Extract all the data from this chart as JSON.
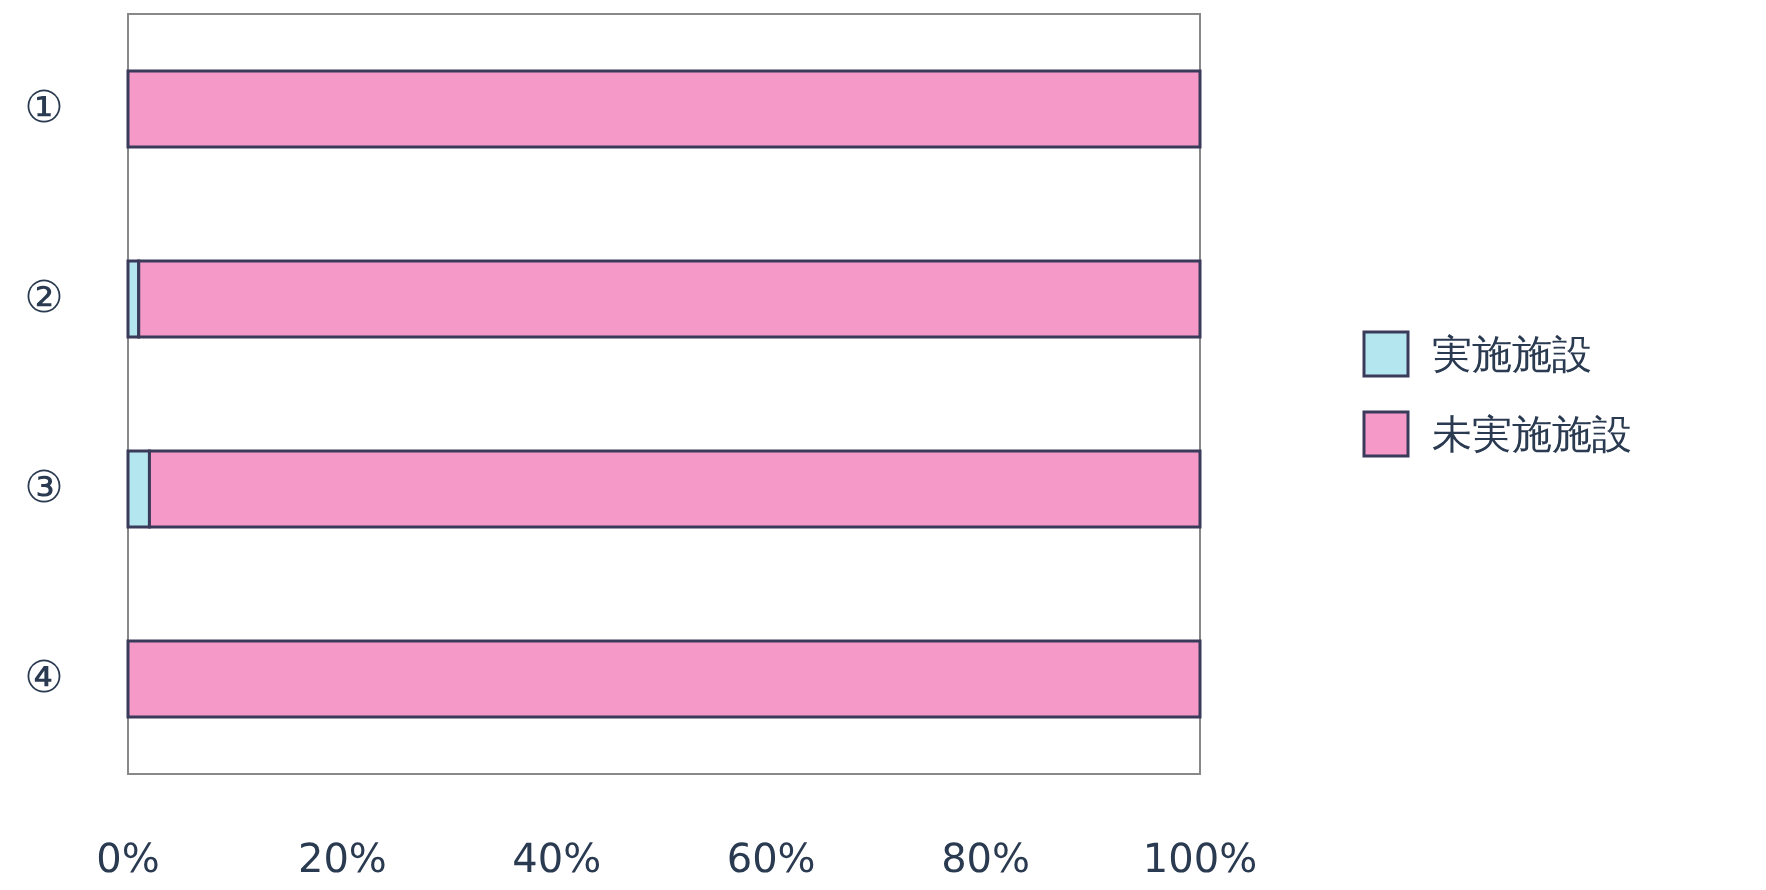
{
  "chart_data": {
    "type": "bar",
    "orientation": "horizontal",
    "stacked": true,
    "categories": [
      "①",
      "②",
      "③",
      "④"
    ],
    "series": [
      {
        "name": "実施施設",
        "color": "#b4e6f0",
        "values": [
          0,
          1,
          2,
          0
        ]
      },
      {
        "name": "未実施施設",
        "color": "#f59ac8",
        "values": [
          100,
          99,
          98,
          100
        ]
      }
    ],
    "xlim": [
      0,
      100
    ],
    "xticks": [
      {
        "value": 0,
        "label": "0%"
      },
      {
        "value": 20,
        "label": "20%"
      },
      {
        "value": 40,
        "label": "40%"
      },
      {
        "value": 60,
        "label": "60%"
      },
      {
        "value": 80,
        "label": "80%"
      },
      {
        "value": 100,
        "label": "100%"
      }
    ],
    "legend": "right"
  }
}
